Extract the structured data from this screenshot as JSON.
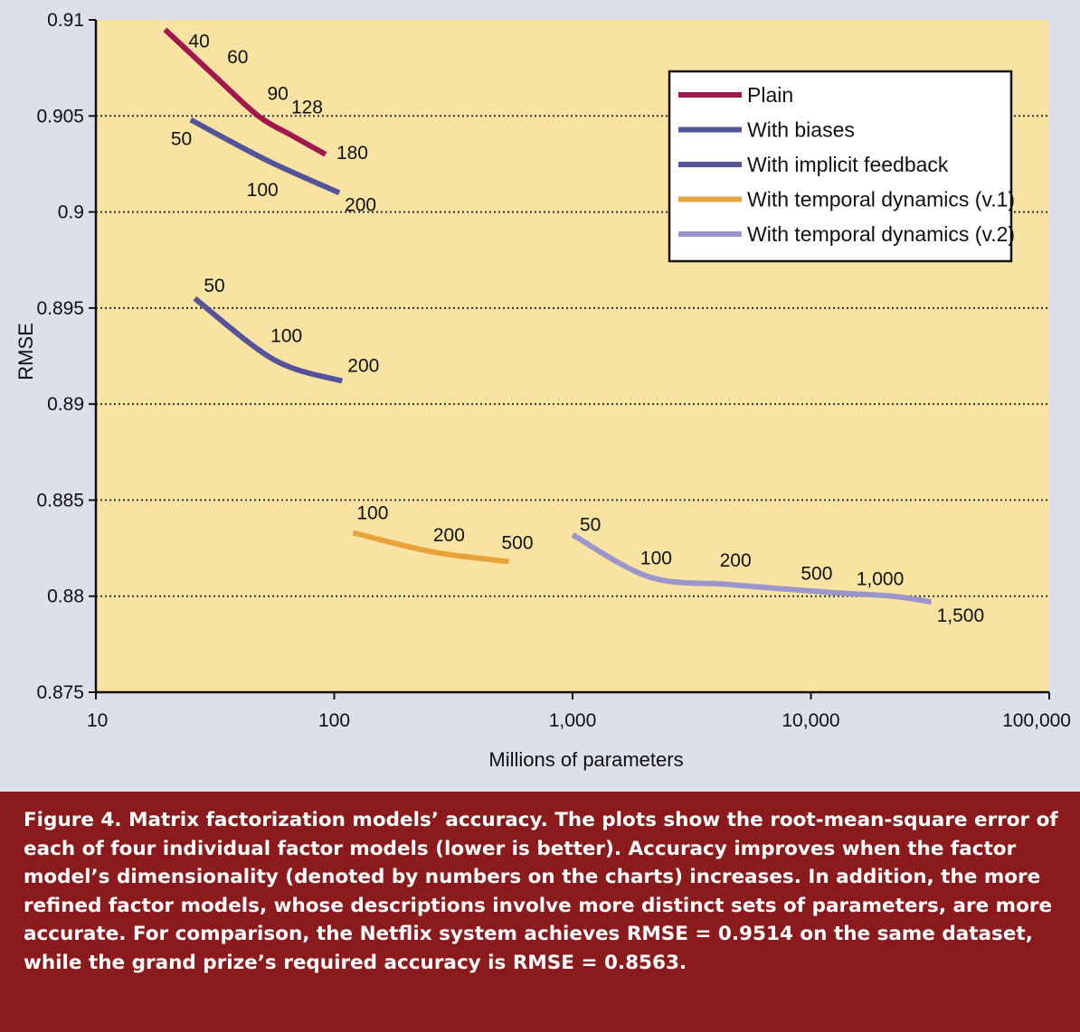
{
  "chart_data": {
    "type": "line",
    "xscale": "log",
    "xlim": [
      10,
      100000
    ],
    "ylim": [
      0.875,
      0.91
    ],
    "xlabel": "Millions of parameters",
    "ylabel": "RMSE",
    "x_ticks": [
      "10",
      "100",
      "1,000",
      "10,000",
      "100,000"
    ],
    "x_tick_values": [
      10,
      100,
      1000,
      10000,
      100000
    ],
    "y_ticks": [
      "0.91",
      "0.905",
      "0.9",
      "0.895",
      "0.89",
      "0.885",
      "0.88",
      "0.875"
    ],
    "y_tick_values": [
      0.91,
      0.905,
      0.9,
      0.895,
      0.89,
      0.885,
      0.88,
      0.875
    ],
    "grid": "horizontal dotted",
    "legend_position": "top-right",
    "background_color": "#f8e3a2",
    "series": [
      {
        "name": "Plain",
        "color": "#a3174f",
        "points": [
          {
            "x": 19.5,
            "y": 0.9095,
            "label": "40"
          },
          {
            "x": 32,
            "y": 0.907,
            "label": "60"
          },
          {
            "x": 48,
            "y": 0.905,
            "label": "90"
          },
          {
            "x": 66,
            "y": 0.904,
            "label": "128"
          },
          {
            "x": 92,
            "y": 0.903,
            "label": "180"
          }
        ]
      },
      {
        "name": "With biases",
        "color": "#54539a",
        "points": [
          {
            "x": 25,
            "y": 0.9048,
            "label": "50"
          },
          {
            "x": 52,
            "y": 0.9027,
            "label": "100"
          },
          {
            "x": 105,
            "y": 0.901,
            "label": "200"
          }
        ]
      },
      {
        "name": "With implicit feedback",
        "color": "#54539a",
        "points": [
          {
            "x": 26,
            "y": 0.8955,
            "label": "50"
          },
          {
            "x": 56,
            "y": 0.8923,
            "label": "100"
          },
          {
            "x": 108,
            "y": 0.8912,
            "label": "200"
          }
        ]
      },
      {
        "name": "With temporal dynamics (v.1)",
        "color": "#e8a33a",
        "points": [
          {
            "x": 120,
            "y": 0.8833,
            "label": "100"
          },
          {
            "x": 260,
            "y": 0.8823,
            "label": "200"
          },
          {
            "x": 540,
            "y": 0.8818,
            "label": "500"
          }
        ]
      },
      {
        "name": "With temporal dynamics (v.2)",
        "color": "#9a96cc",
        "points": [
          {
            "x": 1000,
            "y": 0.8832,
            "label": "50"
          },
          {
            "x": 2100,
            "y": 0.881,
            "label": "100"
          },
          {
            "x": 4600,
            "y": 0.8806,
            "label": "200"
          },
          {
            "x": 12000,
            "y": 0.8802,
            "label": "500"
          },
          {
            "x": 22000,
            "y": 0.88,
            "label": "1,000"
          },
          {
            "x": 32000,
            "y": 0.8797,
            "label": "1,500"
          }
        ]
      }
    ]
  },
  "caption": {
    "label": "Figure 4.",
    "text": "Matrix factorization models’ accuracy. The plots show the root-mean-square error of each of four individual factor models (lower is better). Accuracy improves when the factor model’s dimensionality (denoted by numbers on the charts) increases. In addition, the more refined factor models, whose descriptions involve more distinct sets of parameters, are more accurate. For comparison, the Netflix system achieves RMSE = 0.9514 on the same dataset, while the grand prize’s required accuracy is RMSE = 0.8563."
  }
}
